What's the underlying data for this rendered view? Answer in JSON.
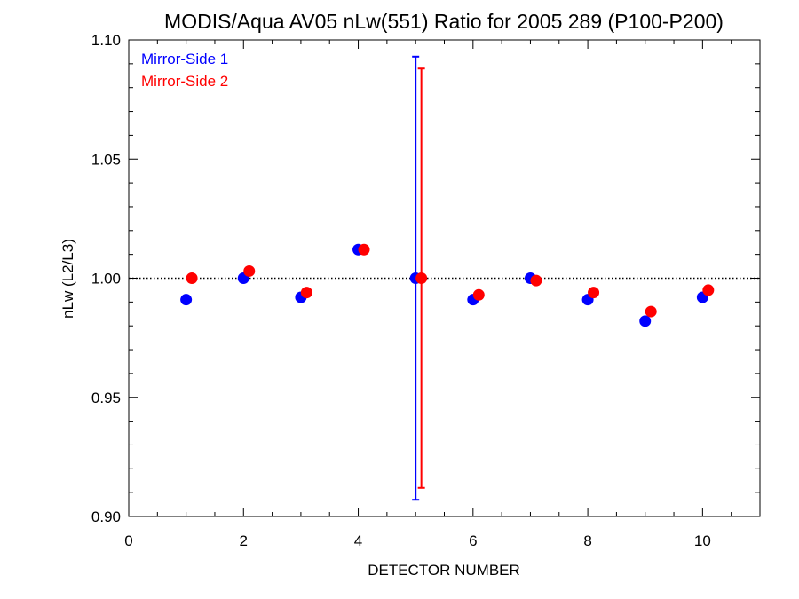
{
  "chart_data": {
    "type": "scatter",
    "title": "MODIS/Aqua AV05 nLw(551) Ratio for 2005 289 (P100-P200)",
    "xlabel": "DETECTOR NUMBER",
    "ylabel": "nLw (L2/L3)",
    "xlim": [
      0,
      11
    ],
    "ylim": [
      0.9,
      1.1
    ],
    "xticks": [
      0,
      2,
      4,
      6,
      8,
      10
    ],
    "xtick_labels": [
      "0",
      "2",
      "4",
      "6",
      "8",
      "10"
    ],
    "yticks": [
      0.9,
      0.95,
      1.0,
      1.05,
      1.1
    ],
    "ytick_labels": [
      "0.90",
      "0.95",
      "1.00",
      "1.05",
      "1.10"
    ],
    "reference_line": {
      "y": 1.0,
      "style": "dotted"
    },
    "legend_position": "top-left",
    "series": [
      {
        "name": "Mirror-Side 1",
        "color": "#0000ff",
        "x": [
          1,
          2,
          3,
          4,
          5,
          6,
          7,
          8,
          9,
          10
        ],
        "y": [
          0.991,
          1.0,
          0.992,
          1.012,
          1.0,
          0.991,
          1.0,
          0.991,
          0.982,
          0.992
        ],
        "error_bars": [
          {
            "x": 5,
            "low": 0.907,
            "high": 1.093
          }
        ]
      },
      {
        "name": "Mirror-Side 2",
        "color": "#ff0000",
        "x": [
          1.1,
          2.1,
          3.1,
          4.1,
          5.1,
          6.1,
          7.1,
          8.1,
          9.1,
          10.1
        ],
        "y": [
          1.0,
          1.003,
          0.994,
          1.012,
          1.0,
          0.993,
          0.999,
          0.994,
          0.986,
          0.995
        ],
        "error_bars": [
          {
            "x": 5.1,
            "low": 0.912,
            "high": 1.088
          }
        ]
      }
    ]
  }
}
